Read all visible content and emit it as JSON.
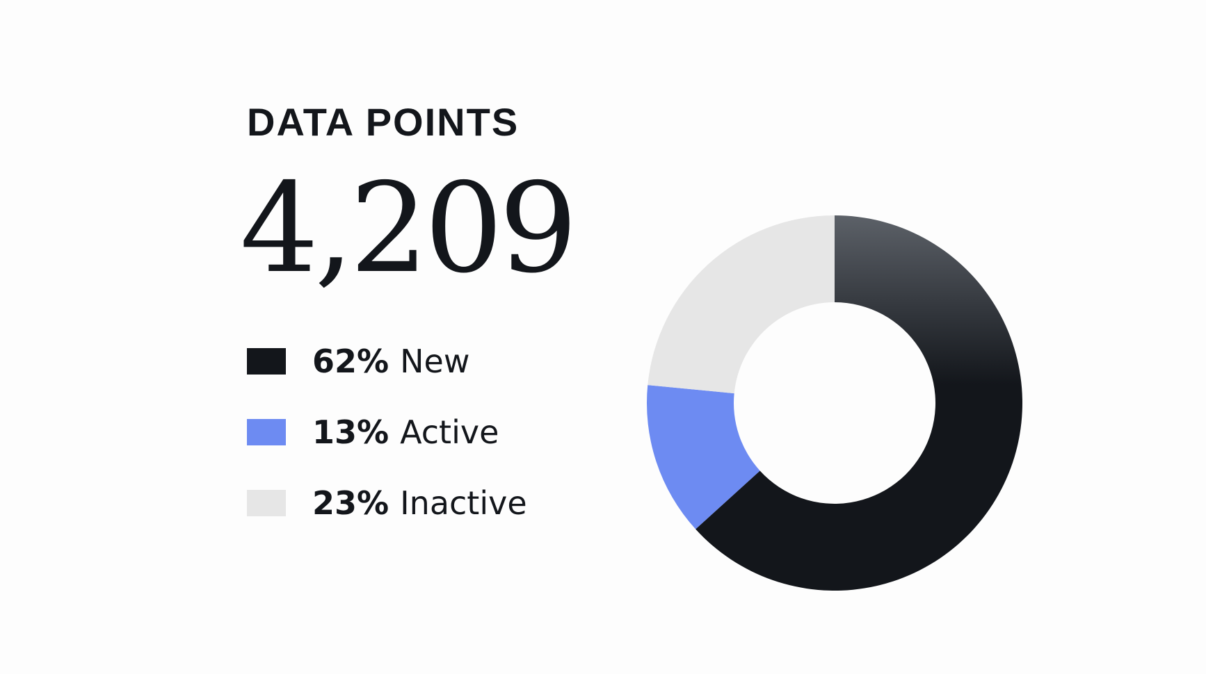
{
  "chart_data": {
    "type": "pie",
    "variant": "donut",
    "title": "DATA POINTS",
    "total": "4,209",
    "slices": [
      {
        "name": "New",
        "value": 62,
        "percent_label": "62%",
        "color": "#13161b"
      },
      {
        "name": "Active",
        "value": 13,
        "percent_label": "13%",
        "color": "#6d8bf2"
      },
      {
        "name": "Inactive",
        "value": 23,
        "percent_label": "23%",
        "color": "#e6e6e6"
      }
    ],
    "legend_position": "left"
  }
}
